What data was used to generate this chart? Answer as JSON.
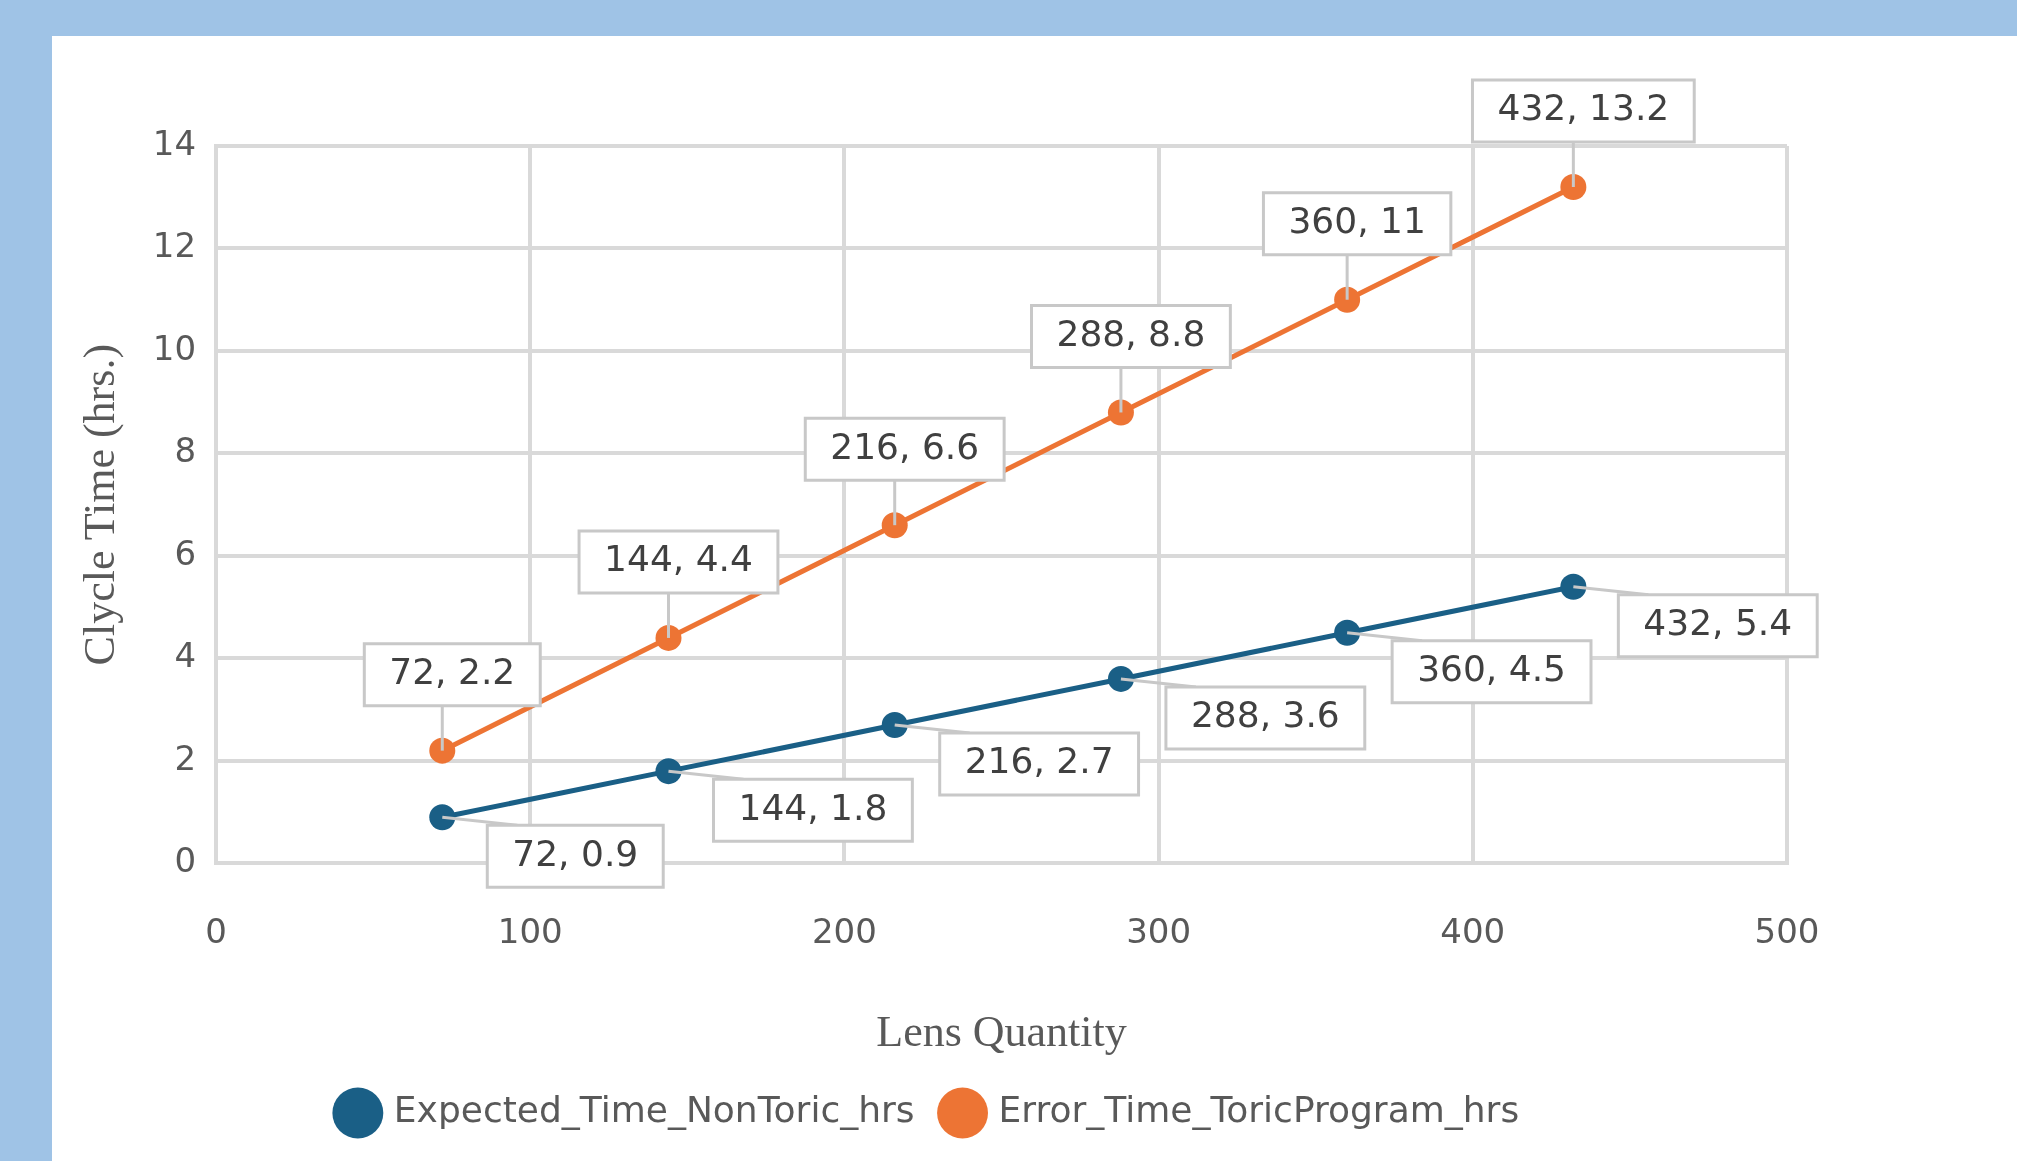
{
  "chart_data": {
    "type": "line",
    "xlabel": "Lens Quantity",
    "ylabel": "Clycle Time (hrs.)",
    "x": [
      72,
      144,
      216,
      288,
      360,
      432
    ],
    "series": [
      {
        "name": "Expected_Time_NonToric_hrs",
        "color": "#1a5f86",
        "values": [
          0.9,
          1.8,
          2.7,
          3.6,
          4.5,
          5.4
        ],
        "value_labels": [
          "72, 0.9",
          "144, 1.8",
          "216, 2.7",
          "288, 3.6",
          "360, 4.5",
          "432, 5.4"
        ]
      },
      {
        "name": "Error_Time_ToricProgram_hrs",
        "color": "#ed7434",
        "values": [
          2.2,
          4.4,
          6.6,
          8.8,
          11,
          13.2
        ],
        "value_labels": [
          "72, 2.2",
          "144, 4.4",
          "216, 6.6",
          "288, 8.8",
          "360, 11",
          "432, 13.2"
        ]
      }
    ],
    "xlim": [
      0,
      500
    ],
    "xticks": [
      0,
      100,
      200,
      300,
      400,
      500
    ],
    "ylim": [
      0,
      14
    ],
    "yticks": [
      0,
      2,
      4,
      6,
      8,
      10,
      12,
      14
    ],
    "grid": true,
    "legend": "bottom",
    "marker": "circle",
    "line_style": "solid"
  }
}
